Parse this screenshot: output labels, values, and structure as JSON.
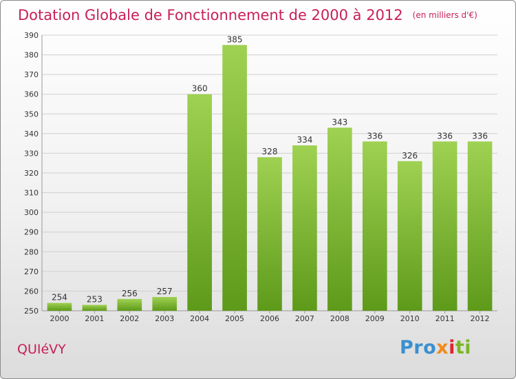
{
  "header": {
    "title": "Dotation Globale de Fonctionnement de 2000 à 2012",
    "unit": "(en milliers d'€)"
  },
  "footer": {
    "place": "QUIéVY",
    "logo_parts": [
      "Pro",
      "x",
      "i",
      "ti"
    ]
  },
  "colors": {
    "title": "#c81e5a",
    "bar_top": "#9fd152",
    "bar_bottom": "#5e9a1a",
    "logo": [
      "#3a8fd0",
      "#f08a1c",
      "#e0262e",
      "#7bb625"
    ]
  },
  "chart_data": {
    "type": "bar",
    "categories": [
      "2000",
      "2001",
      "2002",
      "2003",
      "2004",
      "2005",
      "2006",
      "2007",
      "2008",
      "2009",
      "2010",
      "2011",
      "2012"
    ],
    "values": [
      254,
      253,
      256,
      257,
      360,
      385,
      328,
      334,
      343,
      336,
      326,
      336,
      336
    ],
    "ylim": [
      250,
      390
    ],
    "yticks": [
      250,
      260,
      270,
      280,
      290,
      300,
      310,
      320,
      330,
      340,
      350,
      360,
      370,
      380,
      390
    ],
    "grid": true,
    "xlabel": "",
    "ylabel": ""
  }
}
